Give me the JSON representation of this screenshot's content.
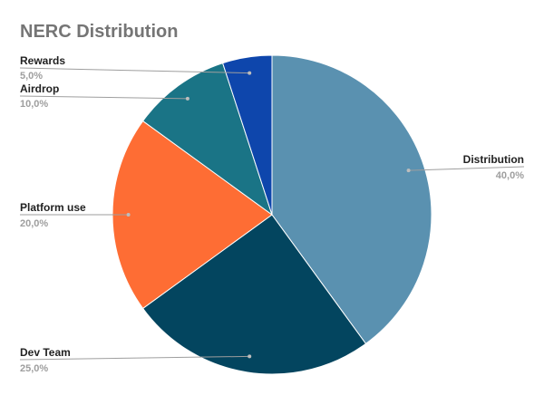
{
  "chart_data": {
    "type": "pie",
    "title": "NERC Distribution",
    "categories": [
      "Distribution",
      "Dev Team",
      "Platform use",
      "Airdrop",
      "Rewards"
    ],
    "values": [
      40,
      25,
      20,
      10,
      5
    ],
    "value_labels": [
      "40,0%",
      "25,0%",
      "20,0%",
      "10,0%",
      "5,0%"
    ],
    "colors": [
      "#5a91b0",
      "#03455f",
      "#fe6d34",
      "#1a7486",
      "#0e46ac"
    ],
    "start_angle": "12 o'clock",
    "direction": "clockwise",
    "legend": "none"
  }
}
